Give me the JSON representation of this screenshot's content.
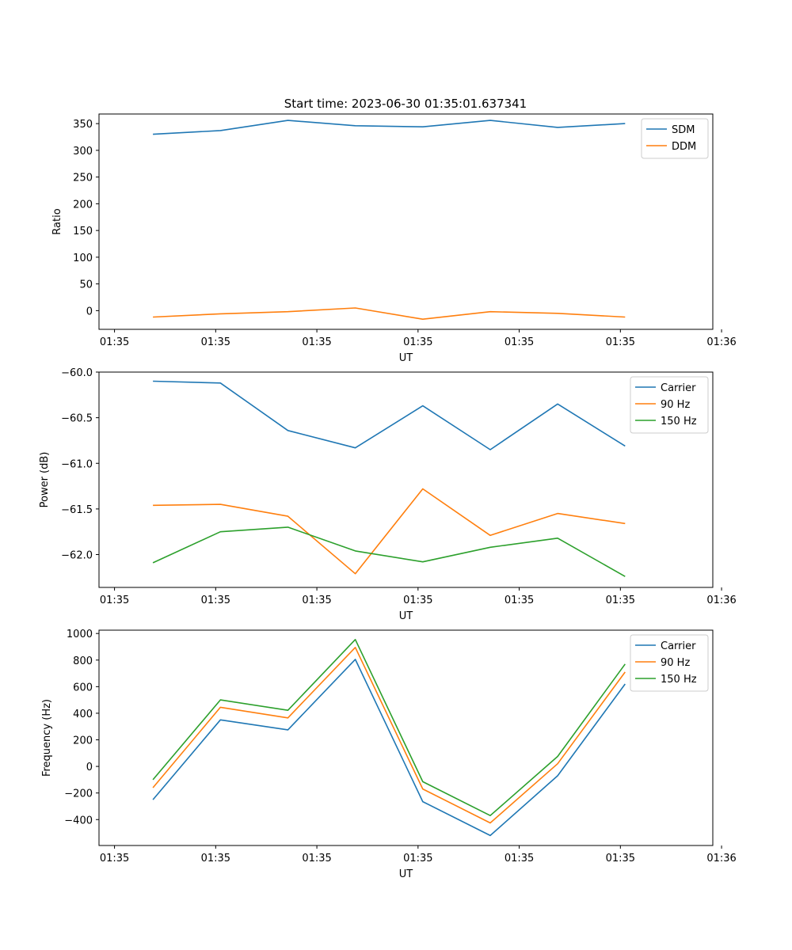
{
  "figure": {
    "title": "Start time: 2023-06-30 01:35:01.637341"
  },
  "chart_data": [
    {
      "type": "line",
      "title": "Start time: 2023-06-30 01:35:01.637341",
      "xlabel": "UT",
      "ylabel": "Ratio",
      "x": [
        1,
        2,
        3,
        4,
        5,
        6,
        7,
        8
      ],
      "xlim": [
        0.2,
        9.3
      ],
      "xticks": [
        {
          "v": 0.43,
          "label": "01:35"
        },
        {
          "v": 1.93,
          "label": "01:35"
        },
        {
          "v": 3.43,
          "label": "01:35"
        },
        {
          "v": 4.93,
          "label": "01:35"
        },
        {
          "v": 6.43,
          "label": "01:35"
        },
        {
          "v": 7.93,
          "label": "01:35"
        },
        {
          "v": 9.43,
          "label": "01:36"
        }
      ],
      "ylim": [
        -35,
        368
      ],
      "yticks": [
        0,
        50,
        100,
        150,
        200,
        250,
        300,
        350
      ],
      "legend": "top-right",
      "grid": false,
      "series": [
        {
          "name": "SDM",
          "color": "#1f77b4",
          "values": [
            330,
            337,
            356,
            346,
            344,
            356,
            343,
            350
          ]
        },
        {
          "name": "DDM",
          "color": "#ff7f0e",
          "values": [
            -12,
            -6,
            -2,
            5,
            -16,
            -2,
            -5,
            -12
          ]
        }
      ]
    },
    {
      "type": "line",
      "title": "",
      "xlabel": "UT",
      "ylabel": "Power (dB)",
      "x": [
        1,
        2,
        3,
        4,
        5,
        6,
        7,
        8
      ],
      "xlim": [
        0.2,
        9.3
      ],
      "xticks": [
        {
          "v": 0.43,
          "label": "01:35"
        },
        {
          "v": 1.93,
          "label": "01:35"
        },
        {
          "v": 3.43,
          "label": "01:35"
        },
        {
          "v": 4.93,
          "label": "01:35"
        },
        {
          "v": 6.43,
          "label": "01:35"
        },
        {
          "v": 7.93,
          "label": "01:35"
        },
        {
          "v": 9.43,
          "label": "01:36"
        }
      ],
      "ylim": [
        -62.36,
        -60.0
      ],
      "yticks": [
        -62.0,
        -61.5,
        -61.0,
        -60.5,
        -60.0
      ],
      "legend": "top-right",
      "grid": false,
      "series": [
        {
          "name": "Carrier",
          "color": "#1f77b4",
          "values": [
            -60.1,
            -60.12,
            -60.64,
            -60.83,
            -60.37,
            -60.85,
            -60.35,
            -60.81
          ]
        },
        {
          "name": "90 Hz",
          "color": "#ff7f0e",
          "values": [
            -61.46,
            -61.45,
            -61.58,
            -62.21,
            -61.28,
            -61.79,
            -61.55,
            -61.66
          ]
        },
        {
          "name": "150 Hz",
          "color": "#2ca02c",
          "values": [
            -62.09,
            -61.75,
            -61.7,
            -61.96,
            -62.08,
            -61.92,
            -61.82,
            -62.24
          ]
        }
      ]
    },
    {
      "type": "line",
      "title": "",
      "xlabel": "UT",
      "ylabel": "Frequency (Hz)",
      "x": [
        1,
        2,
        3,
        4,
        5,
        6,
        7,
        8
      ],
      "xlim": [
        0.2,
        9.3
      ],
      "xticks": [
        {
          "v": 0.43,
          "label": "01:35"
        },
        {
          "v": 1.93,
          "label": "01:35"
        },
        {
          "v": 3.43,
          "label": "01:35"
        },
        {
          "v": 4.93,
          "label": "01:35"
        },
        {
          "v": 6.43,
          "label": "01:35"
        },
        {
          "v": 7.93,
          "label": "01:35"
        },
        {
          "v": 9.43,
          "label": "01:36"
        }
      ],
      "ylim": [
        -595,
        1025
      ],
      "yticks": [
        -400,
        -200,
        0,
        200,
        400,
        600,
        800,
        1000
      ],
      "legend": "top-right",
      "grid": false,
      "series": [
        {
          "name": "Carrier",
          "color": "#1f77b4",
          "values": [
            -250,
            350,
            275,
            805,
            -265,
            -520,
            -70,
            620
          ]
        },
        {
          "name": "90 Hz",
          "color": "#ff7f0e",
          "values": [
            -160,
            445,
            365,
            895,
            -170,
            -425,
            20,
            710
          ]
        },
        {
          "name": "150 Hz",
          "color": "#2ca02c",
          "values": [
            -100,
            500,
            422,
            955,
            -115,
            -370,
            75,
            770
          ]
        }
      ]
    }
  ]
}
